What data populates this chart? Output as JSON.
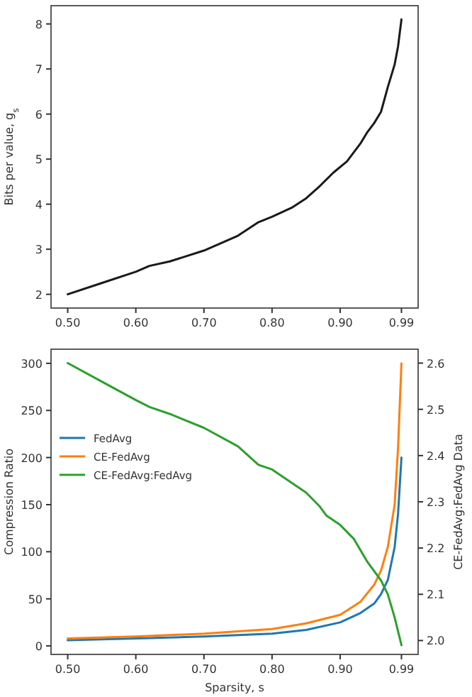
{
  "chart_data": [
    {
      "type": "line",
      "ylabel": "Bits per value, g$_{s}$",
      "xlim": [
        0.4755,
        1.0145
      ],
      "xticks": [
        {
          "value": 0.5,
          "label": "0.50"
        },
        {
          "value": 0.6,
          "label": "0.60"
        },
        {
          "value": 0.7,
          "label": "0.70"
        },
        {
          "value": 0.8,
          "label": "0.80"
        },
        {
          "value": 0.9,
          "label": "0.90"
        },
        {
          "value": 0.99,
          "label": "0.99"
        }
      ],
      "ylim": [
        1.695,
        8.405
      ],
      "yticks": [
        2,
        3,
        4,
        5,
        6,
        7,
        8
      ],
      "grid": false,
      "legend": false,
      "marker": "none",
      "line_style": "solid",
      "series": [
        {
          "color": "#1a1a1a",
          "x": [
            0.5,
            0.55,
            0.6,
            0.62,
            0.65,
            0.7,
            0.75,
            0.78,
            0.8,
            0.83,
            0.85,
            0.87,
            0.89,
            0.91,
            0.93,
            0.94,
            0.95,
            0.96,
            0.97,
            0.98,
            0.985,
            0.99
          ],
          "values": [
            2.0,
            2.25,
            2.5,
            2.63,
            2.73,
            2.97,
            3.3,
            3.6,
            3.72,
            3.93,
            4.13,
            4.4,
            4.7,
            4.95,
            5.35,
            5.6,
            5.8,
            6.05,
            6.6,
            7.1,
            7.5,
            8.1
          ]
        }
      ]
    },
    {
      "type": "line",
      "xlabel": "Sparsity, s",
      "ylabel": "Compression Ratio",
      "y2label": "CE-FedAvg:FedAvg Data",
      "xlim": [
        0.4755,
        1.0145
      ],
      "xticks": [
        {
          "value": 0.5,
          "label": "0.50"
        },
        {
          "value": 0.6,
          "label": "0.60"
        },
        {
          "value": 0.7,
          "label": "0.70"
        },
        {
          "value": 0.8,
          "label": "0.80"
        },
        {
          "value": 0.9,
          "label": "0.90"
        },
        {
          "value": 0.99,
          "label": "0.99"
        }
      ],
      "ylim": [
        -9,
        315
      ],
      "yticks": [
        0,
        50,
        100,
        150,
        200,
        250,
        300
      ],
      "y2lim": [
        1.97,
        2.63
      ],
      "y2ticks": [
        {
          "value": 2.0,
          "label": "2.0"
        },
        {
          "value": 2.1,
          "label": "2.1"
        },
        {
          "value": 2.2,
          "label": "2.2"
        },
        {
          "value": 2.3,
          "label": "2.3"
        },
        {
          "value": 2.4,
          "label": "2.4"
        },
        {
          "value": 2.5,
          "label": "2.5"
        },
        {
          "value": 2.6,
          "label": "2.6"
        }
      ],
      "grid": false,
      "legend": "left",
      "marker": "none",
      "line_style": "solid",
      "series": [
        {
          "name": "FedAvg",
          "color": "#1f77b4",
          "x": [
            0.5,
            0.6,
            0.7,
            0.8,
            0.85,
            0.9,
            0.93,
            0.95,
            0.96,
            0.97,
            0.98,
            0.985,
            0.99
          ],
          "values": [
            6,
            8,
            10,
            13,
            17,
            25,
            35,
            45,
            55,
            70,
            105,
            140,
            200
          ]
        },
        {
          "name": "CE-FedAvg",
          "color": "#ff7f0e",
          "x": [
            0.5,
            0.6,
            0.7,
            0.8,
            0.85,
            0.9,
            0.93,
            0.95,
            0.96,
            0.97,
            0.98,
            0.985,
            0.99
          ],
          "values": [
            8,
            10,
            13,
            18,
            24,
            33,
            47,
            65,
            80,
            105,
            150,
            210,
            300
          ]
        },
        {
          "name": "CE-FedAvg:FedAvg",
          "color": "#2ca02c",
          "axis": "y2",
          "x": [
            0.5,
            0.55,
            0.6,
            0.62,
            0.65,
            0.7,
            0.75,
            0.78,
            0.8,
            0.83,
            0.85,
            0.87,
            0.88,
            0.9,
            0.92,
            0.94,
            0.96,
            0.97,
            0.98,
            0.99
          ],
          "values": [
            2.6,
            2.56,
            2.52,
            2.505,
            2.49,
            2.46,
            2.42,
            2.38,
            2.37,
            2.34,
            2.32,
            2.29,
            2.27,
            2.25,
            2.22,
            2.17,
            2.13,
            2.1,
            2.05,
            1.99
          ]
        }
      ]
    }
  ]
}
